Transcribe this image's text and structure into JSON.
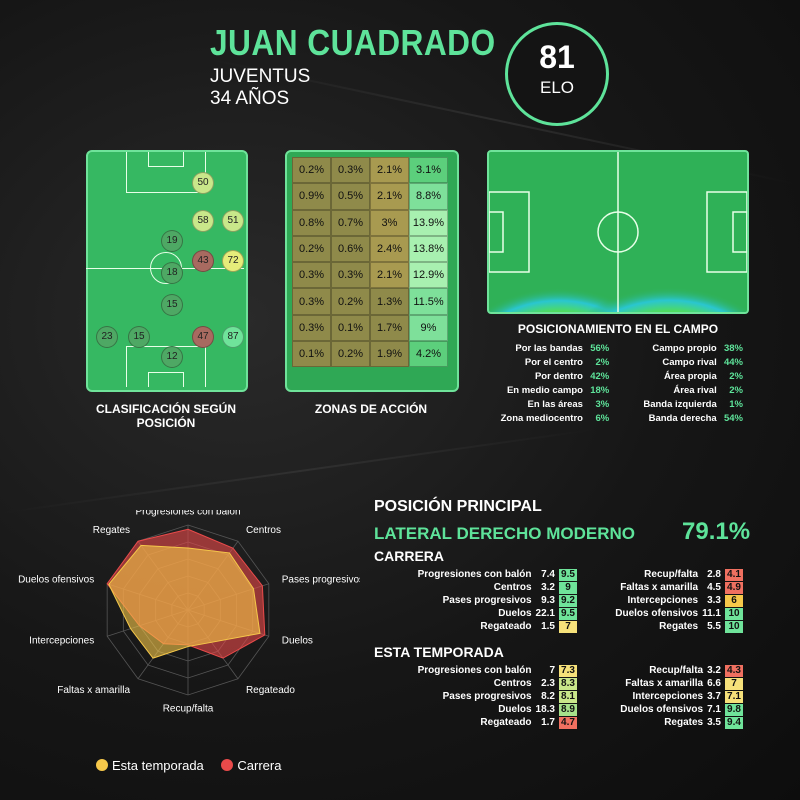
{
  "player": {
    "name": "JUAN CUADRADO",
    "team": "JUVENTUS",
    "age": "34 AÑOS",
    "elo": "81",
    "elo_label": "ELO"
  },
  "colors": {
    "accent": "#5ee39a",
    "season": "#f6c84a",
    "career": "#e94a4a"
  },
  "position_rating": {
    "caption": "CLASIFICACIÓN SEGÚN POSICIÓN",
    "dots": [
      {
        "v": "50",
        "c": "#c9e78a"
      },
      {
        "v": "58",
        "c": "#c9e78a"
      },
      {
        "v": "51",
        "c": "#c9e78a"
      },
      {
        "v": "19",
        "c": "#4ea864"
      },
      {
        "v": "43",
        "c": "#a86a60"
      },
      {
        "v": "72",
        "c": "#e6ec7a"
      },
      {
        "v": "18",
        "c": "#4ea864"
      },
      {
        "v": "15",
        "c": "#4ea864"
      },
      {
        "v": "23",
        "c": "#4ea864"
      },
      {
        "v": "15",
        "c": "#4ea864"
      },
      {
        "v": "47",
        "c": "#a86a60"
      },
      {
        "v": "87",
        "c": "#6fe39a"
      },
      {
        "v": "12",
        "c": "#4ea864"
      }
    ]
  },
  "zones": {
    "caption": "ZONAS DE ACCIÓN",
    "cells": [
      [
        "0.2%",
        "0.3%",
        "2.1%",
        "3.1%"
      ],
      [
        "0.9%",
        "0.5%",
        "2.1%",
        "8.8%"
      ],
      [
        "0.8%",
        "0.7%",
        "3%",
        "13.9%"
      ],
      [
        "0.2%",
        "0.6%",
        "2.4%",
        "13.8%"
      ],
      [
        "0.3%",
        "0.3%",
        "2.1%",
        "12.9%"
      ],
      [
        "0.3%",
        "0.2%",
        "1.3%",
        "11.5%"
      ],
      [
        "0.3%",
        "0.1%",
        "1.7%",
        "9%"
      ],
      [
        "0.1%",
        "0.2%",
        "1.9%",
        "4.2%"
      ]
    ]
  },
  "heatmap": {
    "caption": "POSICIONAMIENTO EN EL CAMPO",
    "left": [
      {
        "l": "Por las bandas",
        "v": "56%"
      },
      {
        "l": "Por el centro",
        "v": "2%"
      },
      {
        "l": "Por dentro",
        "v": "42%"
      },
      {
        "l": "En medio campo",
        "v": "18%"
      },
      {
        "l": "En las áreas",
        "v": "3%"
      },
      {
        "l": "Zona mediocentro",
        "v": "6%"
      }
    ],
    "right": [
      {
        "l": "Campo propio",
        "v": "38%"
      },
      {
        "l": "Campo rival",
        "v": "44%"
      },
      {
        "l": "Área propia",
        "v": "2%"
      },
      {
        "l": "Área rival",
        "v": "2%"
      },
      {
        "l": "Banda izquierda",
        "v": "1%"
      },
      {
        "l": "Banda derecha",
        "v": "54%"
      }
    ]
  },
  "radar": {
    "labels": [
      "Progresiones con balón",
      "Centros",
      "Pases progresivos",
      "Duelos",
      "Regateado",
      "Recup/falta",
      "Faltas x amarilla",
      "Intercepciones",
      "Duelos ofensivos",
      "Regates"
    ],
    "season": [
      7.3,
      8.3,
      8.1,
      8.9,
      4.7,
      4.3,
      7,
      7.1,
      9.8,
      9.4
    ],
    "career": [
      9.5,
      9,
      9.2,
      9.5,
      7,
      4.1,
      4.9,
      6,
      10,
      10
    ],
    "legend_season": "Esta temporada",
    "legend_career": "Carrera"
  },
  "main_position": {
    "title": "POSICIÓN PRINCIPAL",
    "role": "LATERAL DERECHO MODERNO",
    "pct": "79.1%"
  },
  "career": {
    "title": "CARRERA",
    "left": [
      {
        "l": "Progresiones con balón",
        "v": "7.4",
        "s": "9.5",
        "c": "#6fe39a"
      },
      {
        "l": "Centros",
        "v": "3.2",
        "s": "9",
        "c": "#6fe39a"
      },
      {
        "l": "Pases progresivos",
        "v": "9.3",
        "s": "9.2",
        "c": "#6fe39a"
      },
      {
        "l": "Duelos",
        "v": "22.1",
        "s": "9.5",
        "c": "#6fe39a"
      },
      {
        "l": "Regateado",
        "v": "1.5",
        "s": "7",
        "c": "#f6e17a"
      }
    ],
    "right": [
      {
        "l": "Recup/falta",
        "v": "2.8",
        "s": "4.1",
        "c": "#f07060"
      },
      {
        "l": "Faltas x amarilla",
        "v": "4.5",
        "s": "4.9",
        "c": "#f07060"
      },
      {
        "l": "Intercepciones",
        "v": "3.3",
        "s": "6",
        "c": "#f6c84a"
      },
      {
        "l": "Duelos ofensivos",
        "v": "11.1",
        "s": "10",
        "c": "#6fe39a"
      },
      {
        "l": "Regates",
        "v": "5.5",
        "s": "10",
        "c": "#6fe39a"
      }
    ]
  },
  "season": {
    "title": "ESTA TEMPORADA",
    "left": [
      {
        "l": "Progresiones con balón",
        "v": "7",
        "s": "7.3",
        "c": "#f6e17a"
      },
      {
        "l": "Centros",
        "v": "2.3",
        "s": "8.3",
        "c": "#c9e78a"
      },
      {
        "l": "Pases progresivos",
        "v": "8.2",
        "s": "8.1",
        "c": "#c9e78a"
      },
      {
        "l": "Duelos",
        "v": "18.3",
        "s": "8.9",
        "c": "#a6e08a"
      },
      {
        "l": "Regateado",
        "v": "1.7",
        "s": "4.7",
        "c": "#f07060"
      }
    ],
    "right": [
      {
        "l": "Recup/falta",
        "v": "3.2",
        "s": "4.3",
        "c": "#f07060"
      },
      {
        "l": "Faltas x amarilla",
        "v": "6.6",
        "s": "7",
        "c": "#f6e17a"
      },
      {
        "l": "Intercepciones",
        "v": "3.7",
        "s": "7.1",
        "c": "#f6e17a"
      },
      {
        "l": "Duelos ofensivos",
        "v": "7.1",
        "s": "9.8",
        "c": "#6fe39a"
      },
      {
        "l": "Regates",
        "v": "3.5",
        "s": "9.4",
        "c": "#6fe39a"
      }
    ]
  }
}
